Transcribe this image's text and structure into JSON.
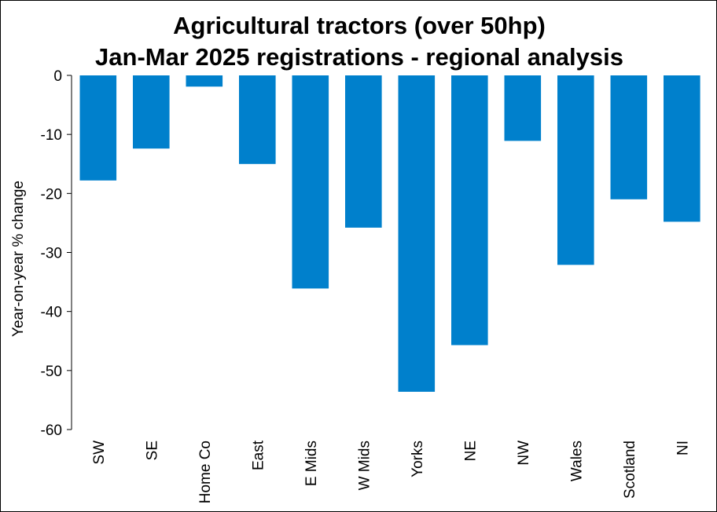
{
  "chart_data": {
    "type": "bar",
    "title_lines": [
      "Agricultural tractors (over 50hp)",
      "Jan-Mar 2025 registrations - regional analysis"
    ],
    "xlabel": "",
    "ylabel": "Year-on-year % change",
    "categories": [
      "SW",
      "SE",
      "Home Co",
      "East",
      "E Mids",
      "W Mids",
      "Yorks",
      "NE",
      "NW",
      "Wales",
      "Scotland",
      "NI"
    ],
    "values": [
      -17.8,
      -12.4,
      -1.9,
      -15.0,
      -36.1,
      -25.8,
      -53.6,
      -45.7,
      -11.1,
      -32.1,
      -21.0,
      -24.8
    ],
    "ylim": [
      -60,
      0
    ],
    "yticks": [
      0,
      -10,
      -20,
      -30,
      -40,
      -50,
      -60
    ],
    "grid": false,
    "legend": "none",
    "bar_color": "#0080cc"
  }
}
